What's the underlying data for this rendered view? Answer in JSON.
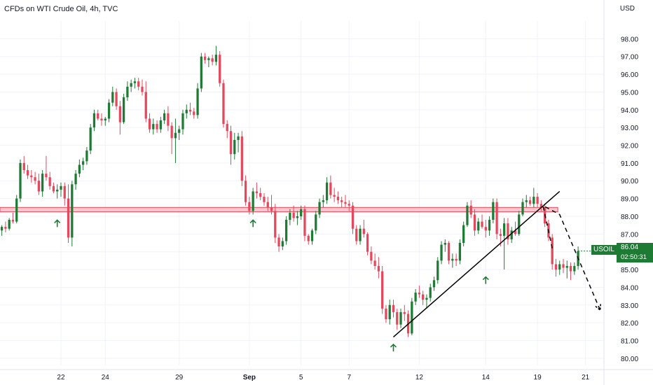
{
  "header": {
    "title": "CFDs on WTI Crude Oil, 4h, TVC"
  },
  "axis": {
    "unit": "USD"
  },
  "last_price": {
    "symbol": "USOIL",
    "value": "86.04",
    "countdown": "02:50:31"
  },
  "colors": {
    "up": "#1e7b34",
    "down": "#e5475c",
    "zone_fill": "#f7c9cf",
    "zone_edge": "#e5475c",
    "trendline": "#000000",
    "arrow": "#1e7b34",
    "grid": "#f0f3fa"
  },
  "chart_data": {
    "type": "candlestick",
    "title": "CFDs on WTI Crude Oil, 4h, TVC",
    "ylabel": "USD",
    "ylim": [
      79.6,
      99.0
    ],
    "y_ticks": [
      "98.00",
      "97.00",
      "96.00",
      "95.00",
      "94.00",
      "93.00",
      "92.00",
      "91.00",
      "90.00",
      "89.00",
      "88.00",
      "87.00",
      "86.00",
      "85.00",
      "84.00",
      "83.00",
      "82.00",
      "81.00",
      "80.00"
    ],
    "x_ticks": [
      {
        "label": "22",
        "bar": 16
      },
      {
        "label": "24",
        "bar": 28
      },
      {
        "label": "29",
        "bar": 48
      },
      {
        "label": "Sep",
        "bar": 67
      },
      {
        "label": "5",
        "bar": 81
      },
      {
        "label": "7",
        "bar": 94
      },
      {
        "label": "12",
        "bar": 113
      },
      {
        "label": "14",
        "bar": 131
      },
      {
        "label": "19",
        "bar": 145
      },
      {
        "label": "21",
        "bar": 158
      }
    ],
    "bar_range": [
      -0.5,
      163
    ],
    "grid": true,
    "candles": [
      [
        87.2,
        87.5,
        86.9,
        87.4
      ],
      [
        87.4,
        87.7,
        87.1,
        87.3
      ],
      [
        87.3,
        87.9,
        87.2,
        87.8
      ],
      [
        87.8,
        88.2,
        87.6,
        87.7
      ],
      [
        87.7,
        89.2,
        87.6,
        89.0
      ],
      [
        89.0,
        91.2,
        88.8,
        91.0
      ],
      [
        91.0,
        91.4,
        90.4,
        90.6
      ],
      [
        90.6,
        90.9,
        90.1,
        90.3
      ],
      [
        90.3,
        90.6,
        89.9,
        90.2
      ],
      [
        90.2,
        90.5,
        89.8,
        90.0
      ],
      [
        90.0,
        90.4,
        89.2,
        89.4
      ],
      [
        89.4,
        90.6,
        89.1,
        90.4
      ],
      [
        90.4,
        91.4,
        90.0,
        90.2
      ],
      [
        90.2,
        90.5,
        89.5,
        89.7
      ],
      [
        89.7,
        89.9,
        89.3,
        89.4
      ],
      [
        89.4,
        89.8,
        89.0,
        89.5
      ],
      [
        89.5,
        89.9,
        89.1,
        89.7
      ],
      [
        89.7,
        89.9,
        88.6,
        89.0
      ],
      [
        89.0,
        89.8,
        86.5,
        86.8
      ],
      [
        86.8,
        90.0,
        86.3,
        89.8
      ],
      [
        89.8,
        90.6,
        89.5,
        90.4
      ],
      [
        90.4,
        91.2,
        90.2,
        90.9
      ],
      [
        90.9,
        91.3,
        90.6,
        91.1
      ],
      [
        91.1,
        91.9,
        90.9,
        91.7
      ],
      [
        91.7,
        93.2,
        91.5,
        93.0
      ],
      [
        93.0,
        94.0,
        92.8,
        93.8
      ],
      [
        93.8,
        94.0,
        93.4,
        93.5
      ],
      [
        93.5,
        93.8,
        93.1,
        93.4
      ],
      [
        93.4,
        93.6,
        93.1,
        93.5
      ],
      [
        93.5,
        94.6,
        93.3,
        94.4
      ],
      [
        94.4,
        95.3,
        94.2,
        95.0
      ],
      [
        95.0,
        95.2,
        94.0,
        94.2
      ],
      [
        94.2,
        94.5,
        92.6,
        93.3
      ],
      [
        93.3,
        94.9,
        93.2,
        94.7
      ],
      [
        94.7,
        95.6,
        94.5,
        95.3
      ],
      [
        95.3,
        95.7,
        95.0,
        95.5
      ],
      [
        95.5,
        95.8,
        95.2,
        95.6
      ],
      [
        95.6,
        95.8,
        95.1,
        95.3
      ],
      [
        95.3,
        95.7,
        94.8,
        95.0
      ],
      [
        95.0,
        95.6,
        93.3,
        93.5
      ],
      [
        93.5,
        93.8,
        92.7,
        92.9
      ],
      [
        92.9,
        93.5,
        92.6,
        93.2
      ],
      [
        93.2,
        93.4,
        92.7,
        92.9
      ],
      [
        92.9,
        93.6,
        92.7,
        93.4
      ],
      [
        93.4,
        94.0,
        93.2,
        93.8
      ],
      [
        93.8,
        94.2,
        92.8,
        93.1
      ],
      [
        93.1,
        93.3,
        91.5,
        92.4
      ],
      [
        92.4,
        93.5,
        91.0,
        92.7
      ],
      [
        92.7,
        93.1,
        92.3,
        92.9
      ],
      [
        92.9,
        94.0,
        92.6,
        93.8
      ],
      [
        93.8,
        94.3,
        93.5,
        94.0
      ],
      [
        94.0,
        94.4,
        93.7,
        93.9
      ],
      [
        93.9,
        94.1,
        93.5,
        93.7
      ],
      [
        93.7,
        95.5,
        93.5,
        95.2
      ],
      [
        95.2,
        97.2,
        95.0,
        97.0
      ],
      [
        97.0,
        97.2,
        96.6,
        96.8
      ],
      [
        96.8,
        97.0,
        96.4,
        96.9
      ],
      [
        96.9,
        97.1,
        96.5,
        96.7
      ],
      [
        96.7,
        97.6,
        96.5,
        97.1
      ],
      [
        97.1,
        97.3,
        95.3,
        95.5
      ],
      [
        95.5,
        95.7,
        93.0,
        93.2
      ],
      [
        93.2,
        93.4,
        92.4,
        92.8
      ],
      [
        92.8,
        93.1,
        90.9,
        91.5
      ],
      [
        91.5,
        92.7,
        91.2,
        92.3
      ],
      [
        92.3,
        92.7,
        91.6,
        92.5
      ],
      [
        92.5,
        92.8,
        89.7,
        90.0
      ],
      [
        90.0,
        90.3,
        88.6,
        88.8
      ],
      [
        88.8,
        89.1,
        88.1,
        88.3
      ],
      [
        88.3,
        89.6,
        88.1,
        89.4
      ],
      [
        89.4,
        89.9,
        89.0,
        89.3
      ],
      [
        89.3,
        89.6,
        88.9,
        89.1
      ],
      [
        89.1,
        89.3,
        88.6,
        88.8
      ],
      [
        88.8,
        89.1,
        88.3,
        88.5
      ],
      [
        88.5,
        89.2,
        88.1,
        88.3
      ],
      [
        88.3,
        88.7,
        86.5,
        86.8
      ],
      [
        86.8,
        87.0,
        86.0,
        86.3
      ],
      [
        86.3,
        86.8,
        86.1,
        86.6
      ],
      [
        86.6,
        88.0,
        86.4,
        87.8
      ],
      [
        87.8,
        88.4,
        87.5,
        88.2
      ],
      [
        88.2,
        88.6,
        87.7,
        87.9
      ],
      [
        87.9,
        88.3,
        87.5,
        88.0
      ],
      [
        88.0,
        88.6,
        87.8,
        88.4
      ],
      [
        88.4,
        88.6,
        86.6,
        86.9
      ],
      [
        86.9,
        87.0,
        86.4,
        86.6
      ],
      [
        86.6,
        87.3,
        86.4,
        87.2
      ],
      [
        87.2,
        88.3,
        87.0,
        88.1
      ],
      [
        88.1,
        89.0,
        87.9,
        88.8
      ],
      [
        88.8,
        89.2,
        88.5,
        88.9
      ],
      [
        88.9,
        90.2,
        88.7,
        89.9
      ],
      [
        89.9,
        90.3,
        89.0,
        89.2
      ],
      [
        89.2,
        89.6,
        88.8,
        89.1
      ],
      [
        89.1,
        89.4,
        88.7,
        88.9
      ],
      [
        88.9,
        89.1,
        88.5,
        88.8
      ],
      [
        88.8,
        89.2,
        88.5,
        88.7
      ],
      [
        88.7,
        88.9,
        88.3,
        88.6
      ],
      [
        88.6,
        88.8,
        87.0,
        87.3
      ],
      [
        87.3,
        87.5,
        86.4,
        86.6
      ],
      [
        86.6,
        87.5,
        86.4,
        87.3
      ],
      [
        87.3,
        87.8,
        86.8,
        87.0
      ],
      [
        87.0,
        87.1,
        85.8,
        86.0
      ],
      [
        86.0,
        86.3,
        85.3,
        85.5
      ],
      [
        85.5,
        85.9,
        85.0,
        85.2
      ],
      [
        85.2,
        85.7,
        84.5,
        84.9
      ],
      [
        84.9,
        85.2,
        82.5,
        82.8
      ],
      [
        82.8,
        83.0,
        82.0,
        82.2
      ],
      [
        82.2,
        83.3,
        81.9,
        83.0
      ],
      [
        83.0,
        83.3,
        82.3,
        82.6
      ],
      [
        82.6,
        82.8,
        81.6,
        81.9
      ],
      [
        81.9,
        82.8,
        81.7,
        82.6
      ],
      [
        82.6,
        83.0,
        82.1,
        82.5
      ],
      [
        82.5,
        82.7,
        81.2,
        81.4
      ],
      [
        81.4,
        83.4,
        81.3,
        83.2
      ],
      [
        83.2,
        83.9,
        83.0,
        83.7
      ],
      [
        83.7,
        84.1,
        83.4,
        83.6
      ],
      [
        83.6,
        83.8,
        83.0,
        83.3
      ],
      [
        83.3,
        83.6,
        82.8,
        83.4
      ],
      [
        83.4,
        84.2,
        83.2,
        84.0
      ],
      [
        84.0,
        84.6,
        83.8,
        84.4
      ],
      [
        84.4,
        85.7,
        84.2,
        85.5
      ],
      [
        85.5,
        86.6,
        85.3,
        86.4
      ],
      [
        86.4,
        86.7,
        86.0,
        86.5
      ],
      [
        86.5,
        86.6,
        85.3,
        85.5
      ],
      [
        85.5,
        85.9,
        85.1,
        85.6
      ],
      [
        85.6,
        85.9,
        85.2,
        85.5
      ],
      [
        85.5,
        86.7,
        85.3,
        86.5
      ],
      [
        86.5,
        87.7,
        86.3,
        87.5
      ],
      [
        87.5,
        88.8,
        87.4,
        88.6
      ],
      [
        88.6,
        88.9,
        87.9,
        88.1
      ],
      [
        88.1,
        88.4,
        86.9,
        87.2
      ],
      [
        87.2,
        87.9,
        87.0,
        87.7
      ],
      [
        87.7,
        88.1,
        87.3,
        87.4
      ],
      [
        87.4,
        87.8,
        86.8,
        87.2
      ],
      [
        87.2,
        88.0,
        86.9,
        87.8
      ],
      [
        87.8,
        89.0,
        87.6,
        88.8
      ],
      [
        88.8,
        89.0,
        86.7,
        87.0
      ],
      [
        87.0,
        87.3,
        86.3,
        86.9
      ],
      [
        86.9,
        87.9,
        85.0,
        87.6
      ],
      [
        87.6,
        87.9,
        86.4,
        86.7
      ],
      [
        86.7,
        87.4,
        86.5,
        87.2
      ],
      [
        87.2,
        87.7,
        86.9,
        87.0
      ],
      [
        87.0,
        88.3,
        86.9,
        88.1
      ],
      [
        88.1,
        89.0,
        88.0,
        88.8
      ],
      [
        88.8,
        89.2,
        88.5,
        88.9
      ],
      [
        88.9,
        89.1,
        88.6,
        88.7
      ],
      [
        88.7,
        89.6,
        88.5,
        89.1
      ],
      [
        89.1,
        89.3,
        88.5,
        88.7
      ],
      [
        88.7,
        88.9,
        88.3,
        88.5
      ],
      [
        88.5,
        88.7,
        87.4,
        87.6
      ],
      [
        87.6,
        87.8,
        86.6,
        86.8
      ],
      [
        86.8,
        87.0,
        85.0,
        85.3
      ],
      [
        85.3,
        85.6,
        84.6,
        85.0
      ],
      [
        85.0,
        85.5,
        84.7,
        85.3
      ],
      [
        85.3,
        85.6,
        84.8,
        85.1
      ],
      [
        85.1,
        85.5,
        84.5,
        85.2
      ],
      [
        85.2,
        85.4,
        84.4,
        84.9
      ],
      [
        84.9,
        85.4,
        84.7,
        85.2
      ],
      [
        85.2,
        86.3,
        85.0,
        86.04
      ]
    ],
    "annotations": {
      "resistance_zone": [
        88.25,
        88.5
      ],
      "trendline": [
        {
          "bar": 106,
          "price": 81.2
        },
        {
          "bar": 151,
          "price": 89.4
        }
      ],
      "projection": [
        {
          "bar": 149,
          "price": 86.2
        },
        {
          "bar": 146.5,
          "price": 88.6
        },
        {
          "bar": 151,
          "price": 88.1
        },
        {
          "bar": 162,
          "price": 82.7
        }
      ],
      "up_arrows": [
        {
          "bar": 15,
          "price": 88.1
        },
        {
          "bar": 68,
          "price": 88.1
        },
        {
          "bar": 106,
          "price": 81.1
        },
        {
          "bar": 131,
          "price": 84.9
        }
      ]
    }
  }
}
